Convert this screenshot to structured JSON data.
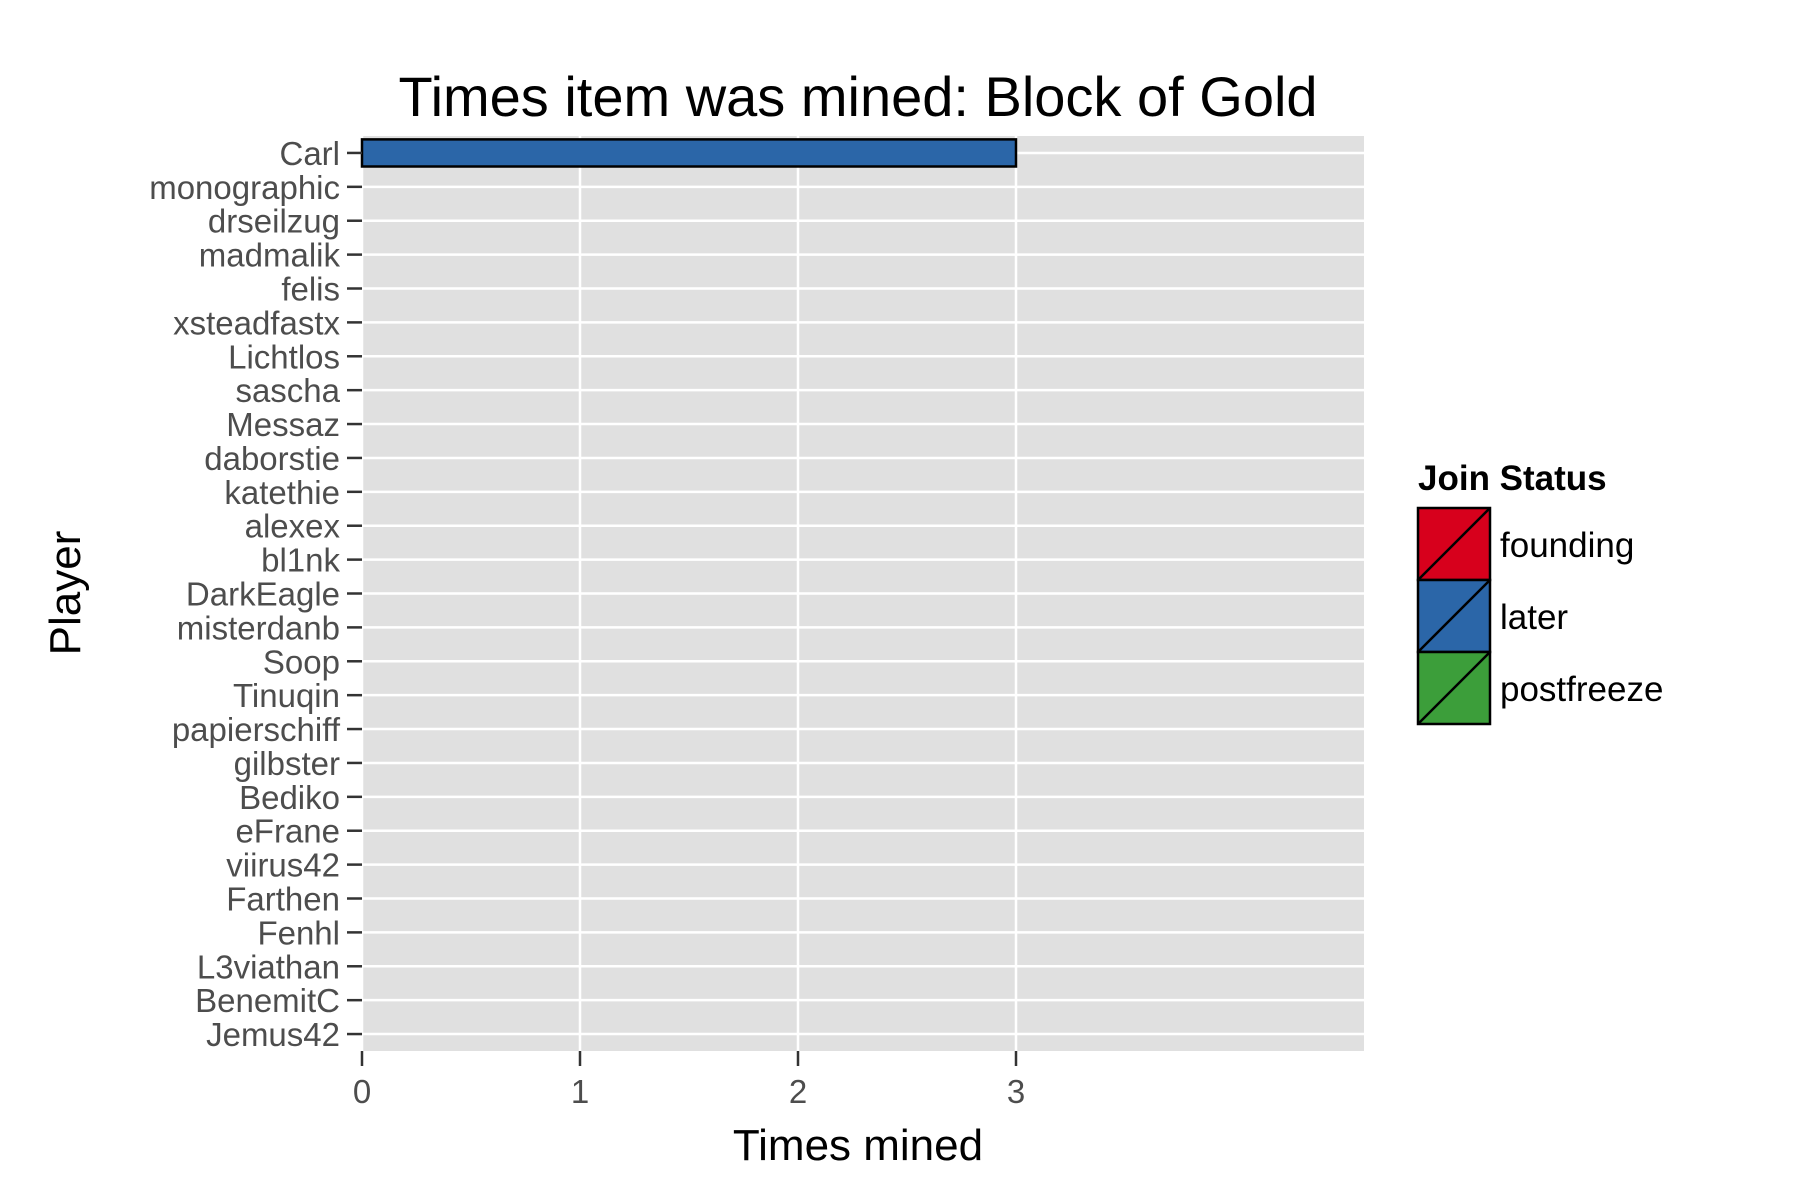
{
  "chart_data": {
    "type": "bar",
    "orientation": "horizontal",
    "title": "Times item was mined: Block of Gold",
    "xlabel": "Times mined",
    "ylabel": "Player",
    "xlim": [
      0,
      4.6
    ],
    "x_ticks": [
      0,
      1,
      2,
      3
    ],
    "grid": true,
    "categories": [
      "Carl",
      "monographic",
      "drseilzug",
      "madmalik",
      "felis",
      "xsteadfastx",
      "Lichtlos",
      "sascha",
      "Messaz",
      "daborstie",
      "katethie",
      "alexex",
      "bl1nk",
      "DarkEagle",
      "misterdanb",
      "Soop",
      "Tinuqin",
      "papierschiff",
      "gilbster",
      "Bediko",
      "eFrane",
      "viirus42",
      "Farthen",
      "Fenhl",
      "L3viathan",
      "BenemitC",
      "Jemus42"
    ],
    "values": [
      3,
      0,
      0,
      0,
      0,
      0,
      0,
      0,
      0,
      0,
      0,
      0,
      0,
      0,
      0,
      0,
      0,
      0,
      0,
      0,
      0,
      0,
      0,
      0,
      0,
      0,
      0
    ],
    "status": [
      "later",
      "later",
      "later",
      "later",
      "later",
      "later",
      "later",
      "later",
      "later",
      "later",
      "later",
      "later",
      "later",
      "later",
      "later",
      "later",
      "later",
      "later",
      "later",
      "later",
      "later",
      "later",
      "later",
      "later",
      "later",
      "later",
      "later"
    ],
    "legend": {
      "title": "Join Status",
      "placement": "right",
      "entries": [
        {
          "name": "founding",
          "color": "#d7001c"
        },
        {
          "name": "later",
          "color": "#2b66a8"
        },
        {
          "name": "postfreeze",
          "color": "#3c9e3a"
        }
      ]
    },
    "panel_background": "#e0e0e0",
    "grid_color": "#ffffff"
  }
}
